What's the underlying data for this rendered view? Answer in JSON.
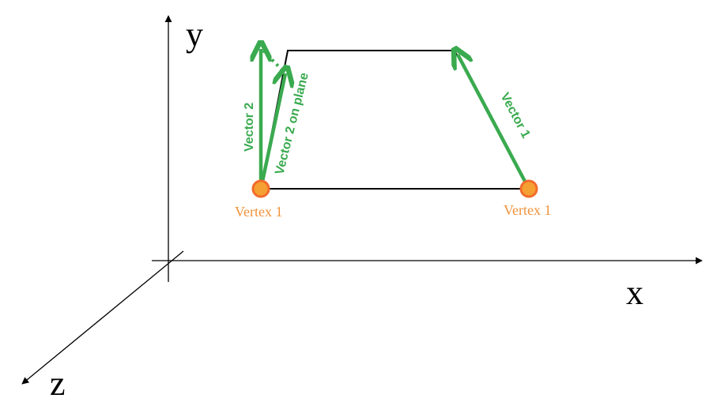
{
  "axes": {
    "x_label": "x",
    "y_label": "y",
    "z_label": "z"
  },
  "vertices": [
    {
      "label": "Vertex 1"
    },
    {
      "label": "Vertex 1"
    }
  ],
  "vectors": {
    "vector_1": "Vector 1",
    "vector_2": "Vector 2",
    "vector_2_on_plane": "Vector 2 on plane"
  },
  "colors": {
    "vector_green": "#3aaa4f",
    "vertex_orange": "#f0923a",
    "vertex_ring": "#f26b2c",
    "outline": "#000000"
  }
}
